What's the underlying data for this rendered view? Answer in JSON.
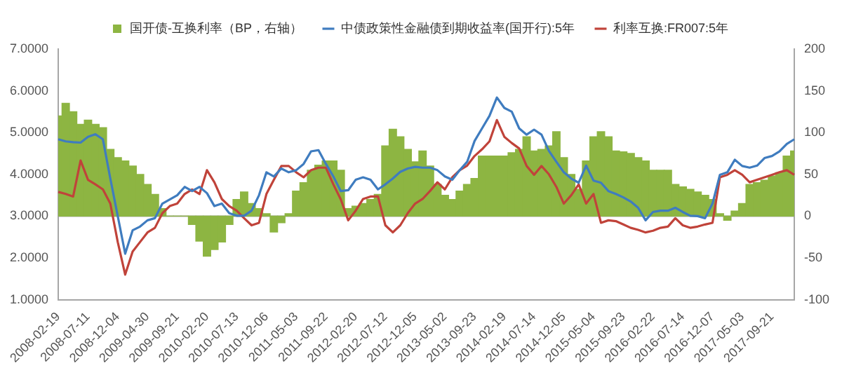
{
  "chart_data": {
    "type": "line",
    "legend": "top",
    "grid": false,
    "marker": "none",
    "categories": [
      "2008-02-19",
      null,
      null,
      null,
      "2008-07-11",
      null,
      null,
      null,
      "2008-12-04",
      null,
      null,
      null,
      "2009-04-30",
      null,
      null,
      null,
      "2009-09-21",
      null,
      null,
      null,
      "2010-02-20",
      null,
      null,
      null,
      "2010-07-13",
      null,
      null,
      null,
      "2010-12-06",
      null,
      null,
      null,
      "2011-05-03",
      null,
      null,
      null,
      "2011-09-22",
      null,
      null,
      null,
      "2012-02-20",
      null,
      null,
      null,
      "2012-07-12",
      null,
      null,
      null,
      "2012-12-05",
      null,
      null,
      null,
      "2013-05-02",
      null,
      null,
      null,
      "2013-09-23",
      null,
      null,
      null,
      "2014-02-19",
      null,
      null,
      null,
      "2014-07-14",
      null,
      null,
      null,
      "2014-12-05",
      null,
      null,
      null,
      "2015-05-04",
      null,
      null,
      null,
      "2015-09-23",
      null,
      null,
      null,
      "2016-02-22",
      null,
      null,
      null,
      "2016-07-14",
      null,
      null,
      null,
      "2016-12-07",
      null,
      null,
      null,
      "2017-05-03",
      null,
      null,
      null,
      "2017-09-21",
      null,
      null,
      null
    ],
    "series": [
      {
        "name": "国开债-互换利率（BP，右轴）",
        "type": "bar",
        "axis": "y2",
        "color": "#8db542",
        "values": [
          120,
          135,
          125,
          110,
          115,
          110,
          106,
          80,
          70,
          66,
          60,
          50,
          38,
          26,
          9,
          0,
          0,
          0,
          -10,
          -30,
          -48,
          -40,
          -31,
          -10,
          20,
          29,
          15,
          9,
          3,
          -19,
          -8,
          3,
          30,
          40,
          55,
          61,
          66,
          66,
          55,
          9,
          12,
          15,
          20,
          26,
          84,
          104,
          95,
          80,
          65,
          78,
          60,
          38,
          25,
          20,
          30,
          38,
          45,
          72,
          72,
          72,
          72,
          76,
          80,
          95,
          78,
          80,
          84,
          101,
          70,
          50,
          32,
          66,
          95,
          101,
          95,
          78,
          77,
          75,
          70,
          66,
          55,
          55,
          55,
          38,
          35,
          32,
          29,
          25,
          20,
          3,
          -5,
          6,
          15,
          38,
          40,
          43,
          48,
          52,
          72,
          78
        ]
      },
      {
        "name": "中债政策性金融债到期收益率(国开行):5年",
        "color": "#3f7cbf",
        "values": [
          4.84,
          4.79,
          4.77,
          4.76,
          4.9,
          4.96,
          4.84,
          3.9,
          3.0,
          2.1,
          2.66,
          2.75,
          2.9,
          2.95,
          3.3,
          3.4,
          3.5,
          3.7,
          3.6,
          3.7,
          3.55,
          3.24,
          3.3,
          3.07,
          3.01,
          3.01,
          3.13,
          3.5,
          4.05,
          3.95,
          4.14,
          4.05,
          4.1,
          4.25,
          4.55,
          4.58,
          4.25,
          3.95,
          3.6,
          3.62,
          3.87,
          3.93,
          3.87,
          3.64,
          3.76,
          3.9,
          4.06,
          4.14,
          4.18,
          4.16,
          4.16,
          4.1,
          3.95,
          3.87,
          4.1,
          4.3,
          4.8,
          5.1,
          5.4,
          5.84,
          5.59,
          5.5,
          5.1,
          4.95,
          5.07,
          4.95,
          4.56,
          4.3,
          4.05,
          3.9,
          3.8,
          4.21,
          3.85,
          3.8,
          3.6,
          3.53,
          3.45,
          3.35,
          3.2,
          2.9,
          3.1,
          3.13,
          3.13,
          3.2,
          3.1,
          3.01,
          3.0,
          2.95,
          3.3,
          3.99,
          4.05,
          4.35,
          4.2,
          4.16,
          4.21,
          4.39,
          4.44,
          4.55,
          4.73,
          4.84
        ]
      },
      {
        "name": "利率互换:FR007:5年",
        "color": "#c0433a",
        "values": [
          3.58,
          3.53,
          3.47,
          4.33,
          3.87,
          3.76,
          3.64,
          3.3,
          2.38,
          1.6,
          2.15,
          2.38,
          2.61,
          2.72,
          3.07,
          3.24,
          3.3,
          3.53,
          3.64,
          3.53,
          4.1,
          3.81,
          3.41,
          3.24,
          3.13,
          2.95,
          2.78,
          2.84,
          3.53,
          3.87,
          4.2,
          4.2,
          4.05,
          3.93,
          4.1,
          4.16,
          4.16,
          3.76,
          3.4,
          2.9,
          3.13,
          3.41,
          3.47,
          3.47,
          2.78,
          2.61,
          2.78,
          3.07,
          3.3,
          3.41,
          3.6,
          3.81,
          3.64,
          3.93,
          4.1,
          4.21,
          4.44,
          4.6,
          4.79,
          5.3,
          4.9,
          4.75,
          4.62,
          4.2,
          3.99,
          4.2,
          4.0,
          3.7,
          3.3,
          3.5,
          3.76,
          3.3,
          3.53,
          2.84,
          2.9,
          2.88,
          2.8,
          2.72,
          2.67,
          2.61,
          2.65,
          2.72,
          2.75,
          2.95,
          2.78,
          2.72,
          2.75,
          2.8,
          2.84,
          3.93,
          3.99,
          4.1,
          3.99,
          3.81,
          3.87,
          3.93,
          3.99,
          4.05,
          4.1,
          3.99
        ]
      }
    ],
    "ylim": [
      1,
      7
    ],
    "yticks": [
      {
        "value": 1,
        "label": "1.0000"
      },
      {
        "value": 2,
        "label": "2.0000"
      },
      {
        "value": 3,
        "label": "3.0000"
      },
      {
        "value": 4,
        "label": "4.0000"
      },
      {
        "value": 5,
        "label": "5.0000"
      },
      {
        "value": 6,
        "label": "6.0000"
      },
      {
        "value": 7,
        "label": "7.0000"
      }
    ],
    "y2lim": [
      -100,
      200
    ],
    "y2ticks": [
      -100,
      -50,
      0,
      50,
      100,
      150,
      200
    ],
    "ref_lines": [
      {
        "axis": "y2",
        "value": 0,
        "color": "#a6a6a6"
      }
    ]
  }
}
